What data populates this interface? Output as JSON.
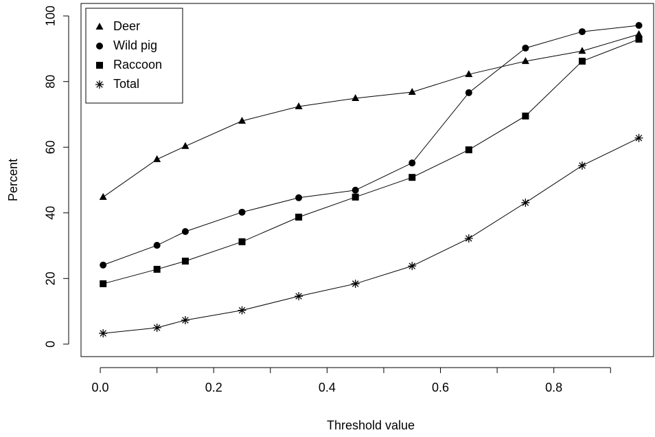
{
  "chart_data": {
    "type": "line",
    "x_label": "Threshold value",
    "y_label": "Percent",
    "x": [
      0.005,
      0.1,
      0.15,
      0.25,
      0.35,
      0.45,
      0.55,
      0.65,
      0.75,
      0.85,
      0.95
    ],
    "series": [
      {
        "name": "Deer",
        "color": "#000000",
        "marker": "triangle",
        "values": [
          44.8,
          56.3,
          60.3,
          68.0,
          72.4,
          74.9,
          76.8,
          82.2,
          86.2,
          89.3,
          94.4
        ]
      },
      {
        "name": "Wild pig",
        "color": "#000000",
        "marker": "circle",
        "values": [
          24.1,
          30.1,
          34.3,
          40.2,
          44.6,
          46.9,
          55.2,
          76.6,
          90.2,
          95.2,
          97.1
        ]
      },
      {
        "name": "Raccoon",
        "color": "#000000",
        "marker": "square",
        "values": [
          18.4,
          22.8,
          25.3,
          31.2,
          38.7,
          44.8,
          50.8,
          59.2,
          69.5,
          86.2,
          92.9
        ]
      },
      {
        "name": "Total",
        "color": "#000000",
        "marker": "asterisk",
        "values": [
          3.3,
          5.0,
          7.3,
          10.3,
          14.6,
          18.4,
          23.8,
          32.2,
          43.1,
          54.4,
          62.8
        ]
      }
    ],
    "xlim": [
      -0.034,
      0.976
    ],
    "ylim": [
      -3.8,
      103.8
    ],
    "xticks": [
      {
        "value": 0,
        "label": "0.0"
      },
      0.2,
      0.4,
      0.6,
      0.8
    ],
    "xminorticks": [
      0.1,
      0.3,
      0.5,
      0.7,
      0.9
    ],
    "yticks": [
      0,
      20,
      40,
      60,
      80,
      100
    ],
    "legend": "top-left",
    "grid": false
  }
}
